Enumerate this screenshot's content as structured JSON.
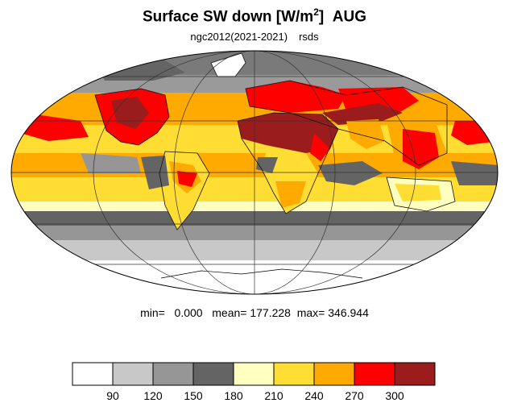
{
  "title": {
    "main": "Surface SW down [W/m",
    "superscript": "2",
    "close": "]",
    "month": "AUG"
  },
  "subtitle": {
    "model": "ngc2012(2021-2021)",
    "variable": "rsds"
  },
  "stats": {
    "min_label": "min=",
    "min": "0.000",
    "mean_label": "mean=",
    "mean": "177.228",
    "max_label": "max=",
    "max": "346.944"
  },
  "legend": {
    "colors": [
      "#ffffff",
      "#c8c8c8",
      "#969696",
      "#646464",
      "#ffffc0",
      "#ffdd33",
      "#ffaa00",
      "#ff0000",
      "#9b1c1c"
    ],
    "ticks": [
      "90",
      "120",
      "150",
      "180",
      "210",
      "240",
      "270",
      "300"
    ]
  }
}
